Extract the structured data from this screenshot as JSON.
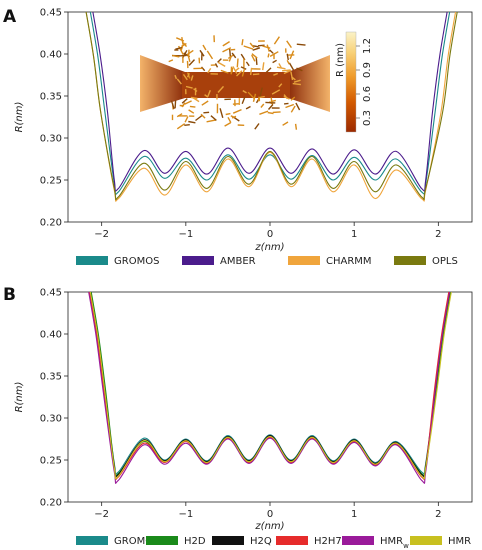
{
  "chart_data": [
    {
      "panel_label": "A",
      "type": "line",
      "xlabel": "z(nm)",
      "ylabel": "R(nm)",
      "xlim": [
        -2.4,
        2.4
      ],
      "ylim": [
        0.2,
        0.45
      ],
      "xticks": [
        -2,
        -1,
        0,
        1,
        2
      ],
      "yticks": [
        0.2,
        0.25,
        0.3,
        0.35,
        0.4,
        0.45
      ],
      "ytick_labels": [
        "0.20",
        "0.25",
        "0.30",
        "0.35",
        "0.40",
        "0.45"
      ],
      "legend_position": "bottom",
      "inset": {
        "colorbar_title": "R (nm)",
        "colorbar_ticks": [
          "0.3",
          "0.6",
          "0.9",
          "1.2"
        ],
        "colorbar_colors": [
          "#9c2a00",
          "#d35a00",
          "#ef9a2a",
          "#f8d27a",
          "#fbf3c8"
        ]
      },
      "series": [
        {
          "name": "GROMOS",
          "color": "#1a8a8a",
          "wall_left": -2.05,
          "wall_right": 2.05,
          "edge_min": 0.236,
          "peaks": [
            0.278,
            0.276,
            0.28,
            0.28,
            0.279,
            0.277,
            0.275
          ],
          "troughs": [
            0.252,
            0.25,
            0.251,
            0.251,
            0.25,
            0.25
          ]
        },
        {
          "name": "AMBER",
          "color": "#4b1c8c",
          "wall_left": -2.02,
          "wall_right": 2.02,
          "edge_min": 0.24,
          "peaks": [
            0.285,
            0.284,
            0.288,
            0.288,
            0.287,
            0.286,
            0.284
          ],
          "troughs": [
            0.258,
            0.257,
            0.258,
            0.258,
            0.257,
            0.257
          ]
        },
        {
          "name": "CHARMM",
          "color": "#f0a53c",
          "wall_left": -2.1,
          "wall_right": 2.12,
          "edge_min": 0.228,
          "peaks": [
            0.264,
            0.268,
            0.275,
            0.283,
            0.275,
            0.268,
            0.262
          ],
          "troughs": [
            0.232,
            0.236,
            0.242,
            0.242,
            0.236,
            0.228
          ]
        },
        {
          "name": "OPLS",
          "color": "#7a7a10",
          "wall_left": -2.1,
          "wall_right": 2.14,
          "edge_min": 0.23,
          "peaks": [
            0.27,
            0.272,
            0.278,
            0.284,
            0.278,
            0.272,
            0.268
          ],
          "troughs": [
            0.238,
            0.24,
            0.245,
            0.245,
            0.24,
            0.236
          ]
        }
      ]
    },
    {
      "panel_label": "B",
      "type": "line",
      "xlabel": "z(nm)",
      "ylabel": "R(nm)",
      "xlim": [
        -2.4,
        2.4
      ],
      "ylim": [
        0.2,
        0.45
      ],
      "xticks": [
        -2,
        -1,
        0,
        1,
        2
      ],
      "yticks": [
        0.2,
        0.25,
        0.3,
        0.35,
        0.4,
        0.45
      ],
      "ytick_labels": [
        "0.20",
        "0.25",
        "0.30",
        "0.35",
        "0.40",
        "0.45"
      ],
      "legend_position": "bottom",
      "series": [
        {
          "name": "GROMOS",
          "color": "#1a8a8a",
          "wall_left": -2.05,
          "wall_right": 2.05,
          "edge_min": 0.236,
          "peaks": [
            0.276,
            0.275,
            0.279,
            0.28,
            0.279,
            0.275,
            0.272
          ],
          "troughs": [
            0.25,
            0.249,
            0.25,
            0.25,
            0.249,
            0.247
          ]
        },
        {
          "name": "H2D",
          "color": "#1a8a1a",
          "wall_left": -2.04,
          "wall_right": 2.06,
          "edge_min": 0.234,
          "peaks": [
            0.272,
            0.273,
            0.277,
            0.278,
            0.277,
            0.273,
            0.27
          ],
          "troughs": [
            0.248,
            0.248,
            0.249,
            0.249,
            0.248,
            0.245
          ]
        },
        {
          "name": "H2Q",
          "color": "#111111",
          "wall_left": -2.05,
          "wall_right": 2.05,
          "edge_min": 0.233,
          "peaks": [
            0.274,
            0.274,
            0.278,
            0.279,
            0.278,
            0.274,
            0.271
          ],
          "troughs": [
            0.249,
            0.248,
            0.249,
            0.249,
            0.248,
            0.246
          ]
        },
        {
          "name": "H2H7",
          "color": "#e62b2b",
          "wall_left": -2.06,
          "wall_right": 2.04,
          "edge_min": 0.23,
          "peaks": [
            0.27,
            0.272,
            0.276,
            0.277,
            0.276,
            0.272,
            0.269
          ],
          "troughs": [
            0.247,
            0.246,
            0.247,
            0.247,
            0.246,
            0.244
          ]
        },
        {
          "name": "HMR",
          "name_sub": "w",
          "color": "#9a1a9a",
          "wall_left": -2.07,
          "wall_right": 2.05,
          "edge_min": 0.226,
          "peaks": [
            0.268,
            0.27,
            0.275,
            0.276,
            0.275,
            0.271,
            0.268
          ],
          "troughs": [
            0.245,
            0.245,
            0.246,
            0.246,
            0.245,
            0.243
          ]
        },
        {
          "name": "HMR",
          "color": "#c8c020",
          "wall_left": -2.05,
          "wall_right": 2.07,
          "edge_min": 0.231,
          "peaks": [
            0.273,
            0.273,
            0.277,
            0.278,
            0.277,
            0.273,
            0.27
          ],
          "troughs": [
            0.248,
            0.247,
            0.248,
            0.248,
            0.247,
            0.245
          ]
        }
      ]
    }
  ]
}
